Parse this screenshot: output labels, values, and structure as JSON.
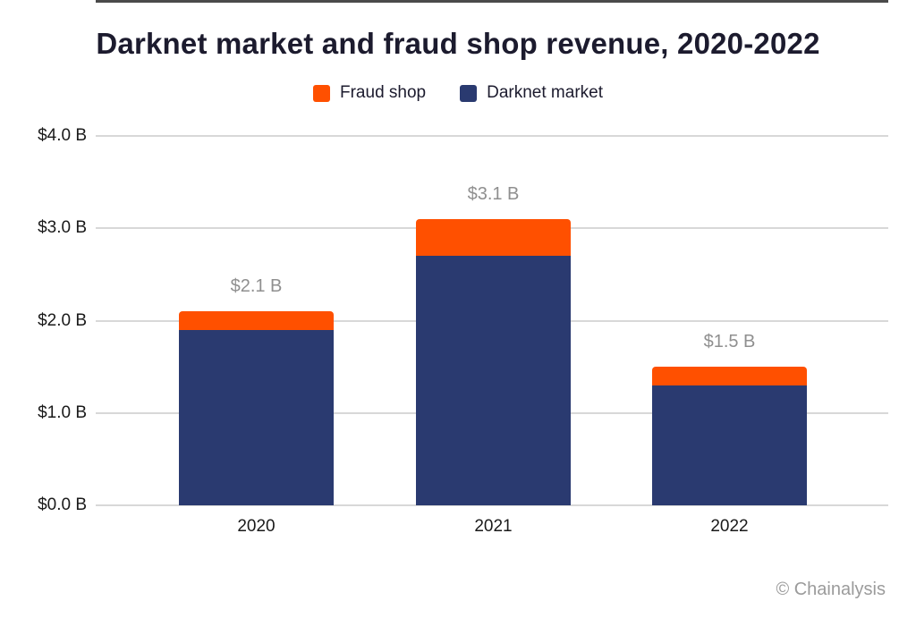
{
  "chart_data": {
    "type": "bar",
    "stacked": true,
    "title": "Darknet market and fraud shop revenue, 2020-2022",
    "categories": [
      "2020",
      "2021",
      "2022"
    ],
    "series": [
      {
        "name": "Fraud shop",
        "color": "#FF5000",
        "values": [
          0.2,
          0.4,
          0.2
        ]
      },
      {
        "name": "Darknet market",
        "color": "#2A3A70",
        "values": [
          1.9,
          2.7,
          1.3
        ]
      }
    ],
    "totals": [
      2.1,
      3.1,
      1.5
    ],
    "total_labels": [
      "$2.1 B",
      "$3.1 B",
      "$1.5 B"
    ],
    "yticks": [
      "$4.0 B",
      "$3.0 B",
      "$2.0 B",
      "$1.0 B",
      "$0.0 B"
    ],
    "ytick_values": [
      4.0,
      3.0,
      2.0,
      1.0,
      0.0
    ],
    "ylim": [
      0,
      4.0
    ],
    "xlabel": "",
    "ylabel": "",
    "grid": true,
    "legend_position": "top"
  },
  "colors": {
    "fraud_shop": "#FF5000",
    "darknet_market": "#2A3A70",
    "gridline": "#D8D8D8",
    "axis_line": "#4A4A4A",
    "total_label": "#8F8F8F",
    "text": "#1C1B2E",
    "watermark": "#9B9B9B",
    "background": "#FFFFFF"
  },
  "footer": {
    "watermark": "© Chainalysis"
  }
}
